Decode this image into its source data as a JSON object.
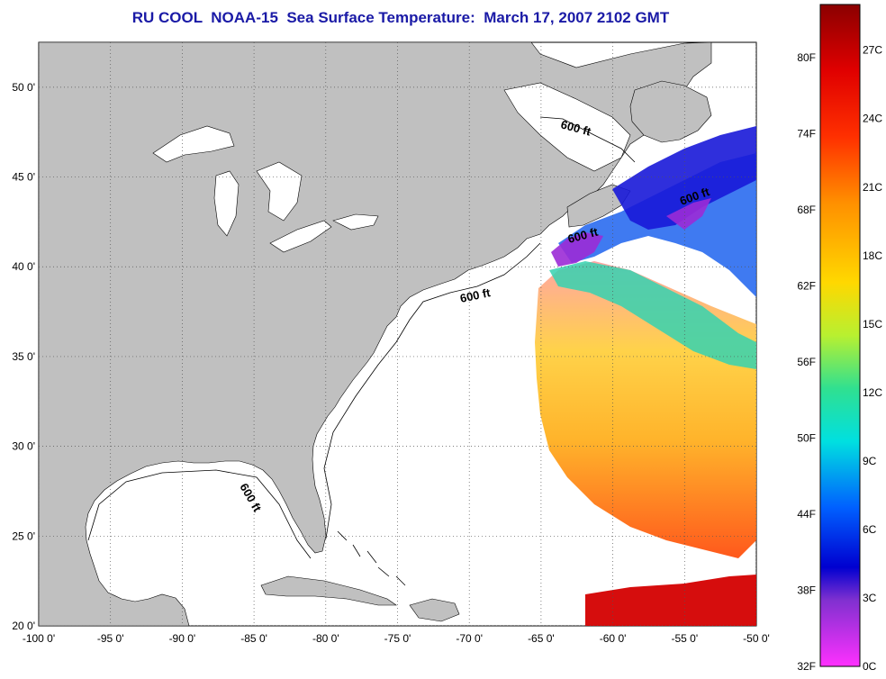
{
  "title": "RU COOL  NOAA-15  Sea Surface Temperature:  March 17, 2007 2102 GMT",
  "colors": {
    "title": "#1a1aa6",
    "land": "#c0c0c0",
    "ocean": "#ffffff"
  },
  "axes": {
    "lat_labels": [
      "50 0'",
      "45 0'",
      "40 0'",
      "35 0'",
      "30 0'",
      "25 0'",
      "20 0'"
    ],
    "lon_labels": [
      "-100 0'",
      "-95 0'",
      "-90 0'",
      "-85 0'",
      "-80 0'",
      "-75 0'",
      "-70 0'",
      "-65 0'",
      "-60 0'",
      "-55 0'",
      "-50 0'"
    ],
    "lat_range": [
      20,
      52.5
    ],
    "lon_range": [
      -100,
      -50
    ]
  },
  "depth_contour_labels": [
    "600 ft",
    "600 ft",
    "600 ft",
    "600 ft",
    "600 ft"
  ],
  "colorbar": {
    "fahrenheit_labels": [
      "80F",
      "74F",
      "68F",
      "62F",
      "56F",
      "50F",
      "44F",
      "38F",
      "32F"
    ],
    "celsius_labels": [
      "27C",
      "24C",
      "21C",
      "18C",
      "15C",
      "12C",
      "9C",
      "6C",
      "3C",
      "0C"
    ],
    "range_c": [
      0,
      29
    ]
  }
}
